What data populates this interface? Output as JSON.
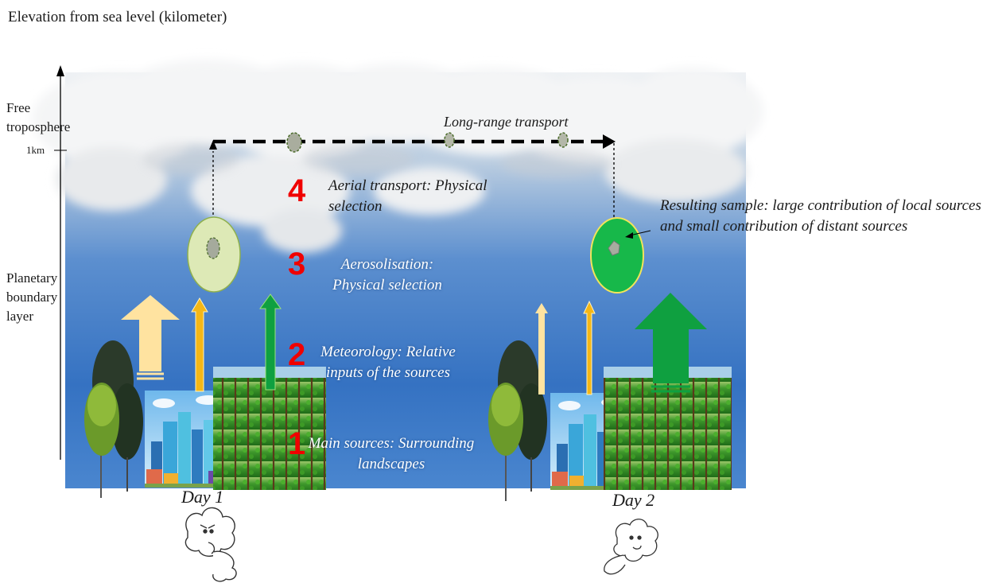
{
  "axis": {
    "title": "Elevation from sea level (kilometer)",
    "tick_label": "1km"
  },
  "zones": {
    "free": "Free troposphere",
    "boundary": "Planetary boundary layer"
  },
  "transport_label": "Long-range transport",
  "steps": [
    {
      "number": "4",
      "label": "Aerial transport: Physical selection"
    },
    {
      "number": "3",
      "label": "Aerosolisation: Physical selection"
    },
    {
      "number": "2",
      "label": "Meteorology: Relative inputs of the sources"
    },
    {
      "number": "1",
      "label": "Main sources: Surrounding landscapes"
    }
  ],
  "result_label": "Resulting sample: large contribution of local sources and small contribution of distant sources",
  "days": [
    "Day 1",
    "Day 2"
  ],
  "colors": {
    "sky_top": "#e7ecf1",
    "sky_bottom": "#2b68b8",
    "step_number": "#f00000",
    "urban_arrow": "#ffe3a0",
    "urban_arrow_thin": "#f5b716",
    "crop_arrow": "#0fa040",
    "sample_day1": "#dcebb4",
    "sample_day2": "#17b84a"
  }
}
